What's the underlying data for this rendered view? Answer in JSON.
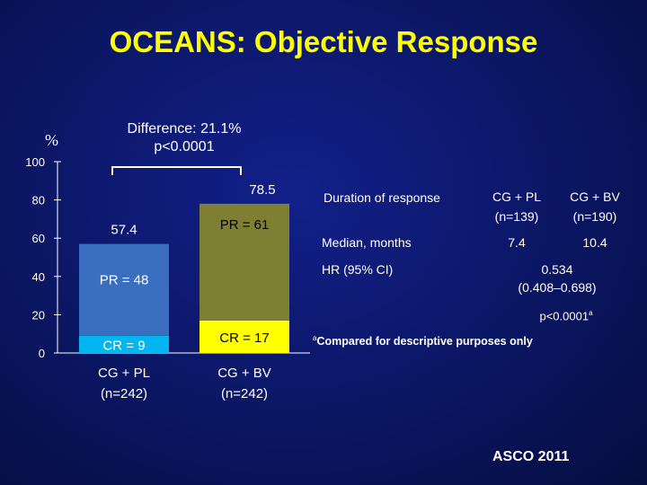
{
  "slide": {
    "title": "OCEANS: Objective Response",
    "source": "ASCO 2011"
  },
  "annotation": {
    "difference_line1": "Difference: 21.1%",
    "difference_line2": "p<0.0001"
  },
  "colors": {
    "pr_cg_pl": "#3a6fbf",
    "cr_cg_pl": "#00b6f0",
    "pr_cg_bv": "#7f7f33",
    "cr_cg_bv": "#ffff00",
    "title": "#ffff00"
  },
  "chart_data": {
    "type": "bar",
    "stacked": true,
    "ylabel": "%",
    "ylim": [
      0,
      100
    ],
    "yticks": [
      "0",
      "20",
      "40",
      "60",
      "80",
      "100"
    ],
    "ytick_values": [
      0,
      20,
      40,
      60,
      80,
      100
    ],
    "categories": [
      {
        "line1": "CG + PL",
        "line2": "(n=242)"
      },
      {
        "line1": "CG + BV",
        "line2": "(n=242)"
      }
    ],
    "totals": [
      57.4,
      78.5
    ],
    "total_labels": [
      "57.4",
      "78.5"
    ],
    "series": [
      {
        "name": "CR",
        "values": [
          9,
          17
        ],
        "labels": [
          "CR = 9",
          "CR = 17"
        ]
      },
      {
        "name": "PR",
        "values": [
          48,
          61
        ],
        "labels": [
          "PR = 48",
          "PR = 61"
        ]
      }
    ]
  },
  "table": {
    "duration_header": "Duration of response",
    "col1_line1": "CG + PL",
    "col1_line2": "(n=139)",
    "col2_line1": "CG + BV",
    "col2_line2": "(n=190)",
    "median_label": "Median, months",
    "median_pl": "7.4",
    "median_bv": "10.4",
    "hr_label": "HR (95% CI)",
    "hr_value": "0.534",
    "hr_ci": "(0.408–0.698)",
    "p_value": "p<0.0001",
    "p_sup": "a"
  },
  "footnote": {
    "marker": "a",
    "text": "Compared for descriptive purposes only"
  }
}
